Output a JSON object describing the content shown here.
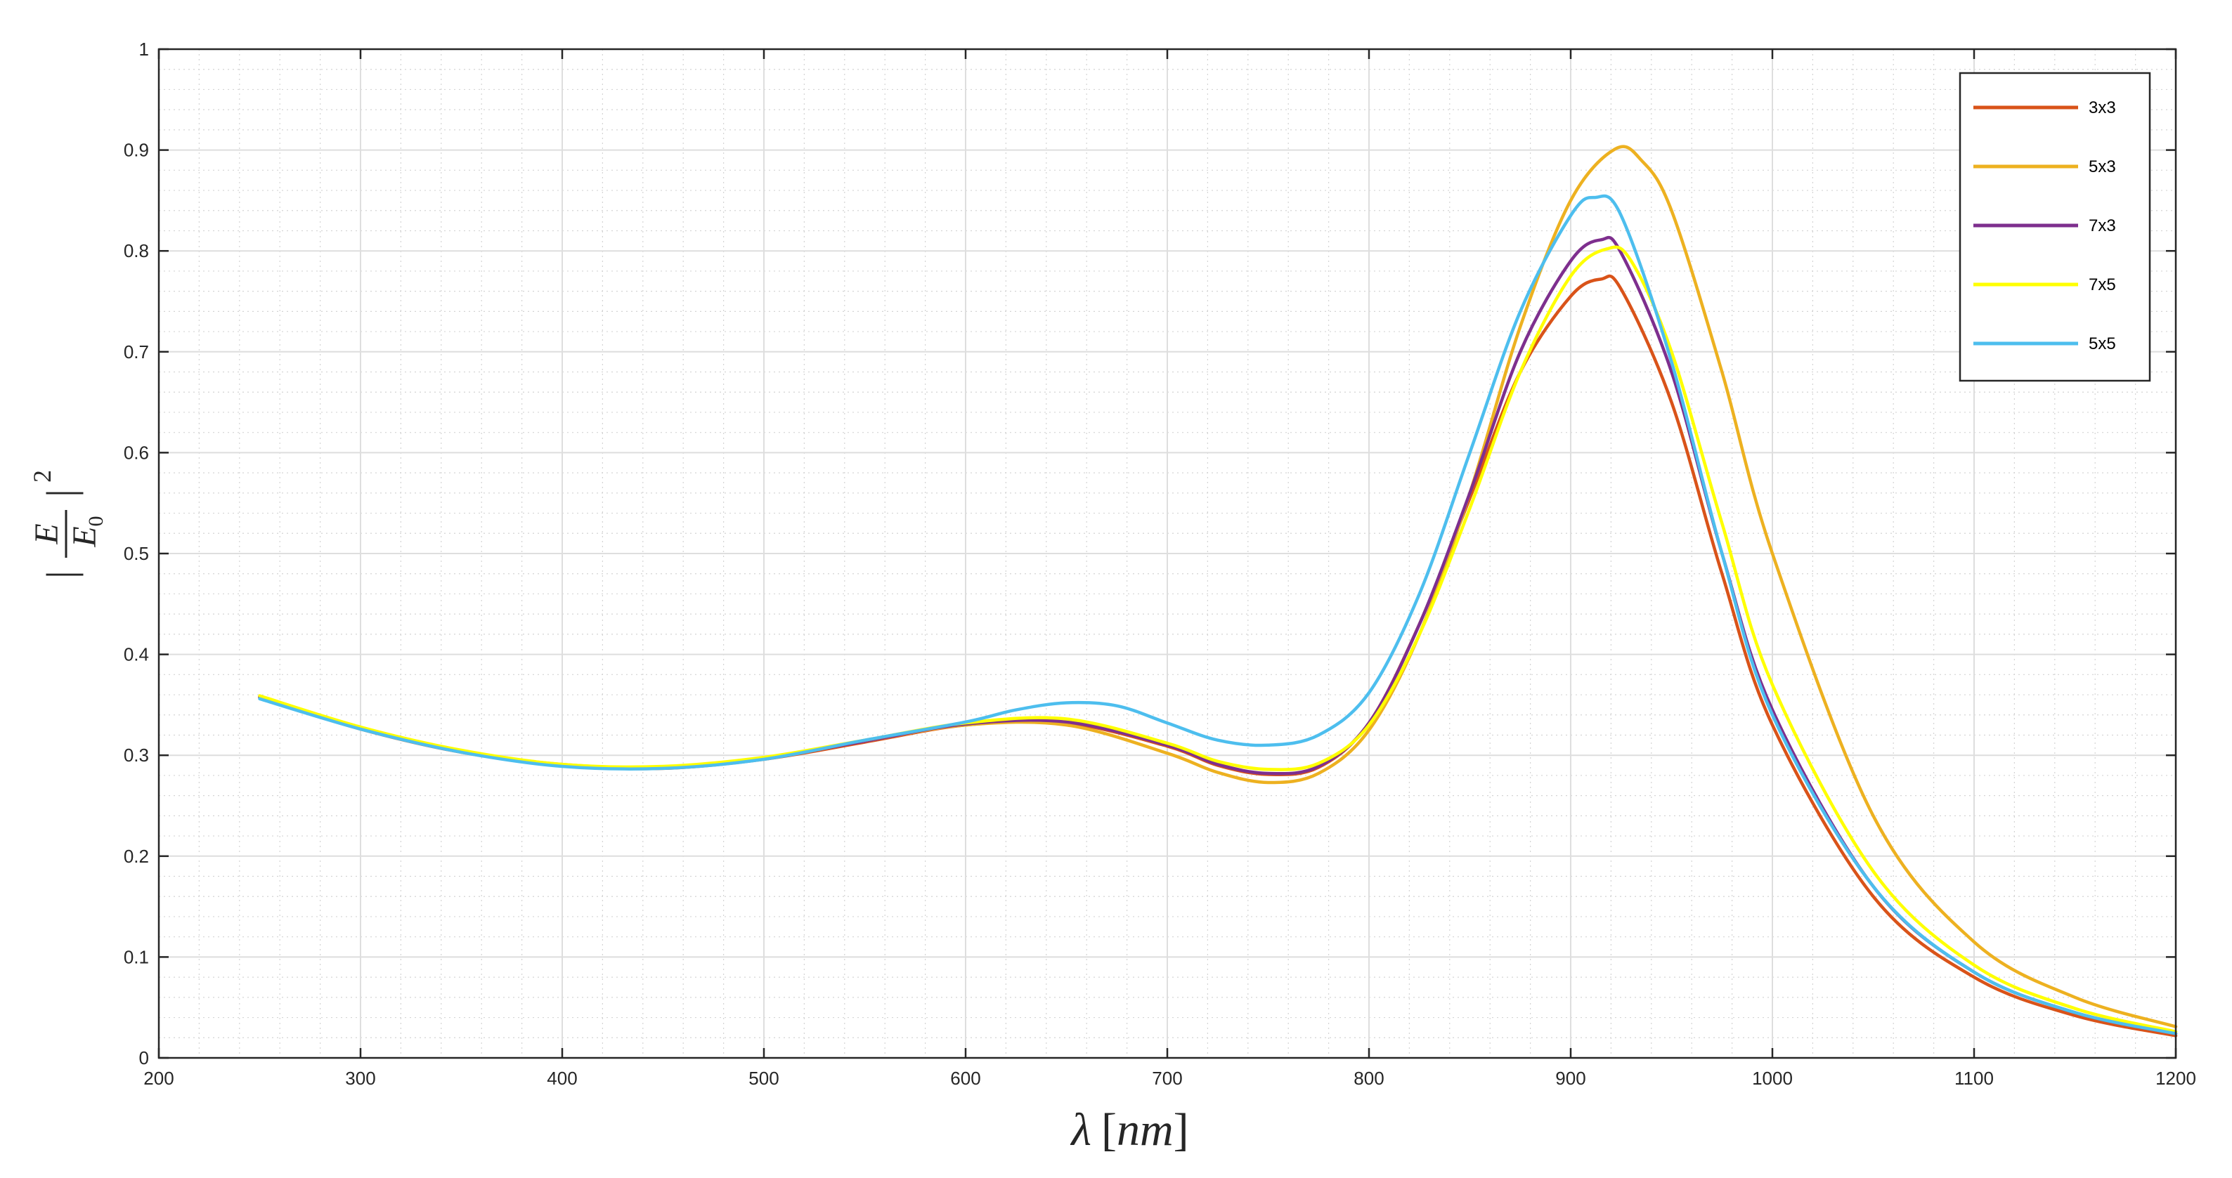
{
  "chart_data": {
    "type": "line",
    "title": "",
    "xlabel": "λ [nm]",
    "ylabel": "|E/E0|^2",
    "xlim": [
      200,
      1200
    ],
    "ylim": [
      0,
      1
    ],
    "xticks": [
      200,
      300,
      400,
      500,
      600,
      700,
      800,
      900,
      1000,
      1100,
      1200
    ],
    "yticks": [
      0,
      0.1,
      0.2,
      0.3,
      0.4,
      0.5,
      0.6,
      0.7,
      0.8,
      0.9,
      1
    ],
    "grid": "major and minor",
    "legend_position": "top-right",
    "series": [
      {
        "name": "3x3",
        "color": "#D95319",
        "x": [
          250,
          300,
          350,
          400,
          450,
          500,
          550,
          600,
          650,
          700,
          725,
          750,
          775,
          800,
          825,
          850,
          875,
          900,
          915,
          925,
          950,
          975,
          1000,
          1050,
          1100,
          1150,
          1200
        ],
        "y": [
          0.357,
          0.326,
          0.303,
          0.29,
          0.287,
          0.296,
          0.313,
          0.33,
          0.332,
          0.309,
          0.29,
          0.281,
          0.288,
          0.332,
          0.43,
          0.555,
          0.68,
          0.755,
          0.772,
          0.762,
          0.65,
          0.48,
          0.33,
          0.16,
          0.08,
          0.042,
          0.022
        ]
      },
      {
        "name": "5x3",
        "color": "#EDB120",
        "x": [
          250,
          300,
          350,
          400,
          450,
          500,
          550,
          600,
          650,
          700,
          725,
          750,
          775,
          800,
          825,
          850,
          875,
          900,
          922,
          935,
          950,
          975,
          1000,
          1050,
          1100,
          1150,
          1200
        ],
        "y": [
          0.358,
          0.327,
          0.304,
          0.291,
          0.288,
          0.297,
          0.314,
          0.33,
          0.33,
          0.302,
          0.283,
          0.273,
          0.282,
          0.325,
          0.42,
          0.56,
          0.725,
          0.85,
          0.901,
          0.89,
          0.84,
          0.68,
          0.5,
          0.24,
          0.115,
          0.06,
          0.031
        ]
      },
      {
        "name": "7x3",
        "color": "#7E2F8E",
        "x": [
          250,
          300,
          350,
          400,
          450,
          500,
          550,
          600,
          650,
          700,
          725,
          750,
          775,
          800,
          825,
          850,
          875,
          900,
          915,
          925,
          950,
          975,
          1000,
          1050,
          1100,
          1150,
          1200
        ],
        "y": [
          0.358,
          0.327,
          0.304,
          0.29,
          0.288,
          0.297,
          0.314,
          0.331,
          0.333,
          0.31,
          0.291,
          0.282,
          0.289,
          0.332,
          0.43,
          0.56,
          0.7,
          0.79,
          0.811,
          0.798,
          0.68,
          0.5,
          0.345,
          0.17,
          0.085,
          0.045,
          0.024
        ]
      },
      {
        "name": "7x5",
        "color": "#FFFF00",
        "x": [
          250,
          300,
          350,
          400,
          450,
          500,
          550,
          600,
          650,
          700,
          725,
          750,
          775,
          800,
          825,
          850,
          875,
          900,
          918,
          930,
          950,
          975,
          1000,
          1050,
          1100,
          1150,
          1200
        ],
        "y": [
          0.359,
          0.328,
          0.305,
          0.291,
          0.289,
          0.298,
          0.315,
          0.332,
          0.336,
          0.312,
          0.294,
          0.286,
          0.292,
          0.33,
          0.42,
          0.545,
          0.68,
          0.775,
          0.802,
          0.79,
          0.7,
          0.53,
          0.37,
          0.185,
          0.092,
          0.049,
          0.026
        ]
      },
      {
        "name": "5x5",
        "color": "#4DBEEE",
        "x": [
          250,
          300,
          350,
          400,
          450,
          500,
          550,
          600,
          625,
          650,
          675,
          700,
          725,
          750,
          775,
          800,
          825,
          850,
          875,
          900,
          912,
          925,
          950,
          975,
          1000,
          1050,
          1100,
          1150,
          1200
        ],
        "y": [
          0.356,
          0.326,
          0.303,
          0.289,
          0.287,
          0.296,
          0.315,
          0.333,
          0.345,
          0.352,
          0.349,
          0.332,
          0.315,
          0.31,
          0.32,
          0.362,
          0.46,
          0.6,
          0.74,
          0.835,
          0.853,
          0.835,
          0.69,
          0.5,
          0.34,
          0.17,
          0.085,
          0.045,
          0.024
        ]
      }
    ]
  }
}
